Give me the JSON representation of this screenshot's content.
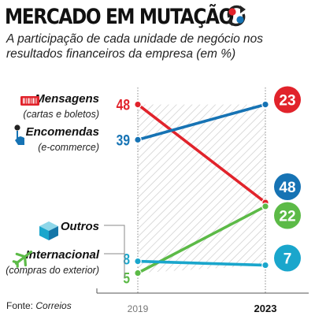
{
  "header": {
    "title": "MERCADO EM MUTAÇÃO",
    "subtitle": "A participação de cada unidade de negócio nos resultados financeiros da empresa (em %)"
  },
  "source": {
    "label": "Fonte:",
    "name": "Correios"
  },
  "colors": {
    "red": "#e1232b",
    "blue": "#1673b4",
    "green": "#5cba47",
    "cyan": "#1aa6cc",
    "dark": "#222222"
  },
  "chart_data": {
    "type": "line",
    "x": [
      "2019",
      "2023"
    ],
    "series": [
      {
        "name": "Mensagens",
        "note": "(cartas e boletos)",
        "values": [
          48,
          23
        ],
        "color": "#e1232b",
        "icon": "barcode-icon"
      },
      {
        "name": "Encomendas",
        "note": "(e-commerce)",
        "values": [
          39,
          48
        ],
        "color": "#1673b4",
        "icon": "pointer-hand-icon"
      },
      {
        "name": "Outros",
        "note": "",
        "values": [
          5,
          22
        ],
        "color": "#5cba47",
        "icon": "package-box-icon"
      },
      {
        "name": "Internacional",
        "note": "(compras do exterior)",
        "values": [
          8,
          7
        ],
        "color": "#1aa6cc",
        "icon": "airplane-icon"
      }
    ],
    "ylim": [
      0,
      50
    ],
    "grid": false,
    "legend": "left"
  }
}
